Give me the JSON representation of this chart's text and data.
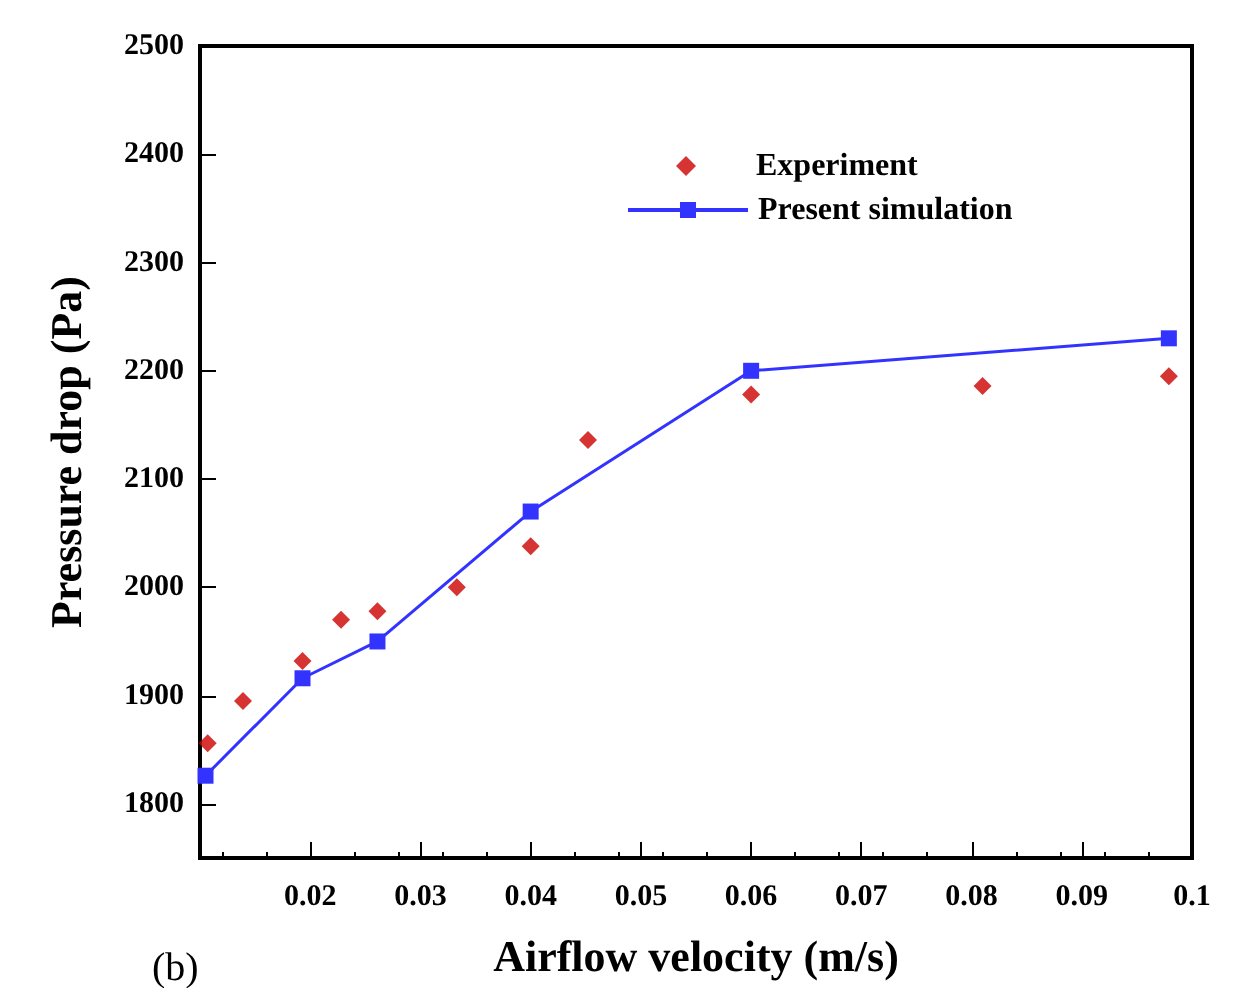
{
  "chart_data": {
    "type": "scatter",
    "xlabel": "Airflow velocity (m/s)",
    "ylabel": "Pressure drop (Pa)",
    "annotations": [
      "(b)"
    ],
    "xlim": [
      0.01,
      0.1
    ],
    "xticks": [
      0.02,
      0.03,
      0.04,
      0.05,
      0.06,
      0.07,
      0.08,
      0.09,
      0.1
    ],
    "ylim": [
      1750,
      2500
    ],
    "yticks": [
      1800,
      1900,
      2000,
      2100,
      2200,
      2300,
      2400,
      2500
    ],
    "grid": false,
    "legend": "top right",
    "series": [
      {
        "name": "Experiment",
        "marker": "diamond",
        "color": "#cc0000",
        "x": [
          0.0107,
          0.0139,
          0.0193,
          0.0228,
          0.0261,
          0.0333,
          0.04,
          0.0452,
          0.06,
          0.081,
          0.0979
        ],
        "values": [
          1856,
          1895,
          1932,
          1970,
          1978,
          2000,
          2038,
          2136,
          2178,
          2186,
          2195
        ]
      },
      {
        "name": "Present simulation",
        "type": "line",
        "marker": "square",
        "color": "#3333ff",
        "x": [
          0.0105,
          0.0193,
          0.0261,
          0.04,
          0.06,
          0.0979
        ],
        "values": [
          1826,
          1916,
          1950,
          2070,
          2200,
          2230
        ]
      }
    ]
  }
}
